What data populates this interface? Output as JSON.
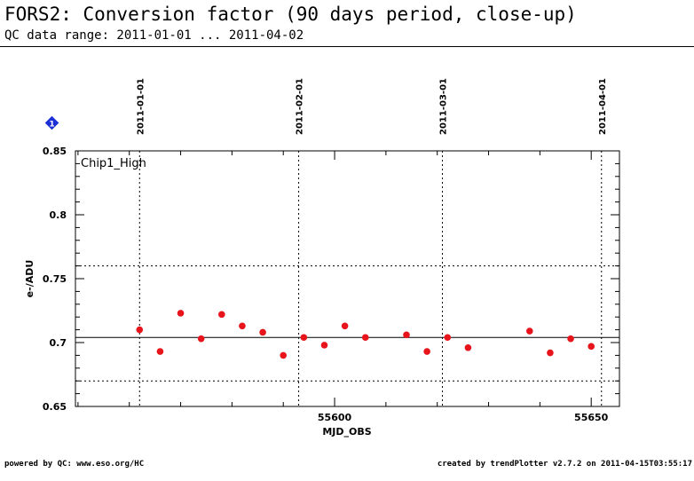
{
  "header": {
    "title": "FORS2: Conversion factor (90 days period, close-up)",
    "subtitle": "QC data range: 2011-01-01 ... 2011-04-02"
  },
  "footer": {
    "left": "powered by QC: www.eso.org/HC",
    "right": "created by trendPlotter v2.7.2 on 2011-04-15T03:55:17"
  },
  "marker": {
    "label": "1",
    "color": "#1a2fd6"
  },
  "colors": {
    "points": "#e8141c",
    "axes": "#000000"
  },
  "chart_data": {
    "type": "scatter",
    "panel_label": "Chip1_High",
    "xlabel": "MJD_OBS",
    "ylabel": "e-/ADU",
    "xlim": [
      55549.5,
      55655.5
    ],
    "ylim": [
      0.65,
      0.85
    ],
    "x_ticks": [
      55600,
      55650
    ],
    "y_ticks": [
      0.65,
      0.7,
      0.75,
      0.8,
      0.85
    ],
    "y_tick_labels": [
      "0.65",
      "0.7",
      "0.75",
      "0.8",
      "0.85"
    ],
    "date_markers": [
      {
        "mjd": 55562,
        "label": "2011-01-01"
      },
      {
        "mjd": 55593,
        "label": "2011-02-01"
      },
      {
        "mjd": 55621,
        "label": "2011-03-01"
      },
      {
        "mjd": 55652,
        "label": "2011-04-01"
      }
    ],
    "reference_line": 0.704,
    "threshold_lines": [
      0.76,
      0.67
    ],
    "series": [
      {
        "x": [
          55562,
          55566,
          55570,
          55574,
          55578,
          55582,
          55586,
          55590,
          55594,
          55598,
          55602,
          55606,
          55614,
          55618,
          55622,
          55626,
          55638,
          55642,
          55646,
          55650
        ],
        "y": [
          0.71,
          0.693,
          0.723,
          0.703,
          0.722,
          0.713,
          0.708,
          0.69,
          0.704,
          0.698,
          0.713,
          0.704,
          0.706,
          0.693,
          0.704,
          0.696,
          0.709,
          0.692,
          0.703,
          0.697
        ]
      }
    ]
  }
}
